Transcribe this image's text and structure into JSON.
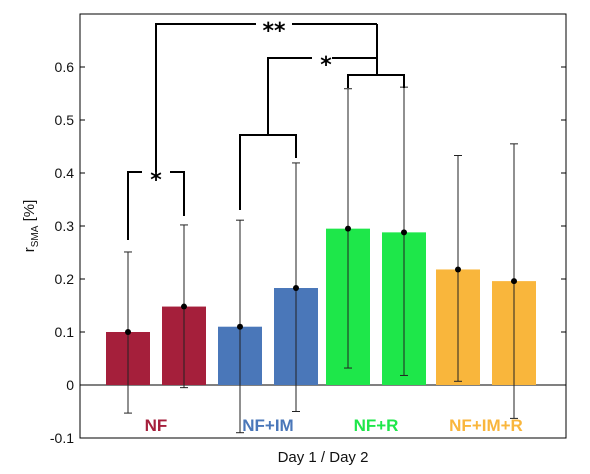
{
  "chart_data": {
    "type": "bar",
    "xlabel": "Day 1 / Day 2",
    "ylabel_main": "r",
    "ylabel_sub": "SMA",
    "ylabel_unit": " [%]",
    "ylim": [
      -0.1,
      0.7
    ],
    "yticks": [
      -0.1,
      0,
      0.1,
      0.2,
      0.3,
      0.4,
      0.5,
      0.6
    ],
    "ytick_labels": [
      "-0.1",
      "0",
      "0.1",
      "0.2",
      "0.3",
      "0.4",
      "0.5",
      "0.6"
    ],
    "groups": [
      {
        "label": "NF",
        "color": "#A51F3B",
        "values": [
          0.1,
          0.148
        ],
        "error_low": [
          -0.053,
          -0.005
        ],
        "error_high": [
          0.251,
          0.302
        ]
      },
      {
        "label": "NF+IM",
        "color": "#4A77B9",
        "values": [
          0.11,
          0.183
        ],
        "error_low": [
          -0.09,
          -0.05
        ],
        "error_high": [
          0.311,
          0.419
        ]
      },
      {
        "label": "NF+R",
        "color": "#1EE74A",
        "values": [
          0.295,
          0.288
        ],
        "error_low": [
          0.032,
          0.018
        ],
        "error_high": [
          0.559,
          0.562
        ]
      },
      {
        "label": "NF+IM+R",
        "color": "#F9B63C",
        "values": [
          0.218,
          0.196
        ],
        "error_low": [
          0.007,
          -0.063
        ],
        "error_high": [
          0.433,
          0.455
        ]
      }
    ],
    "significance": [
      "*",
      "*",
      "**"
    ]
  }
}
